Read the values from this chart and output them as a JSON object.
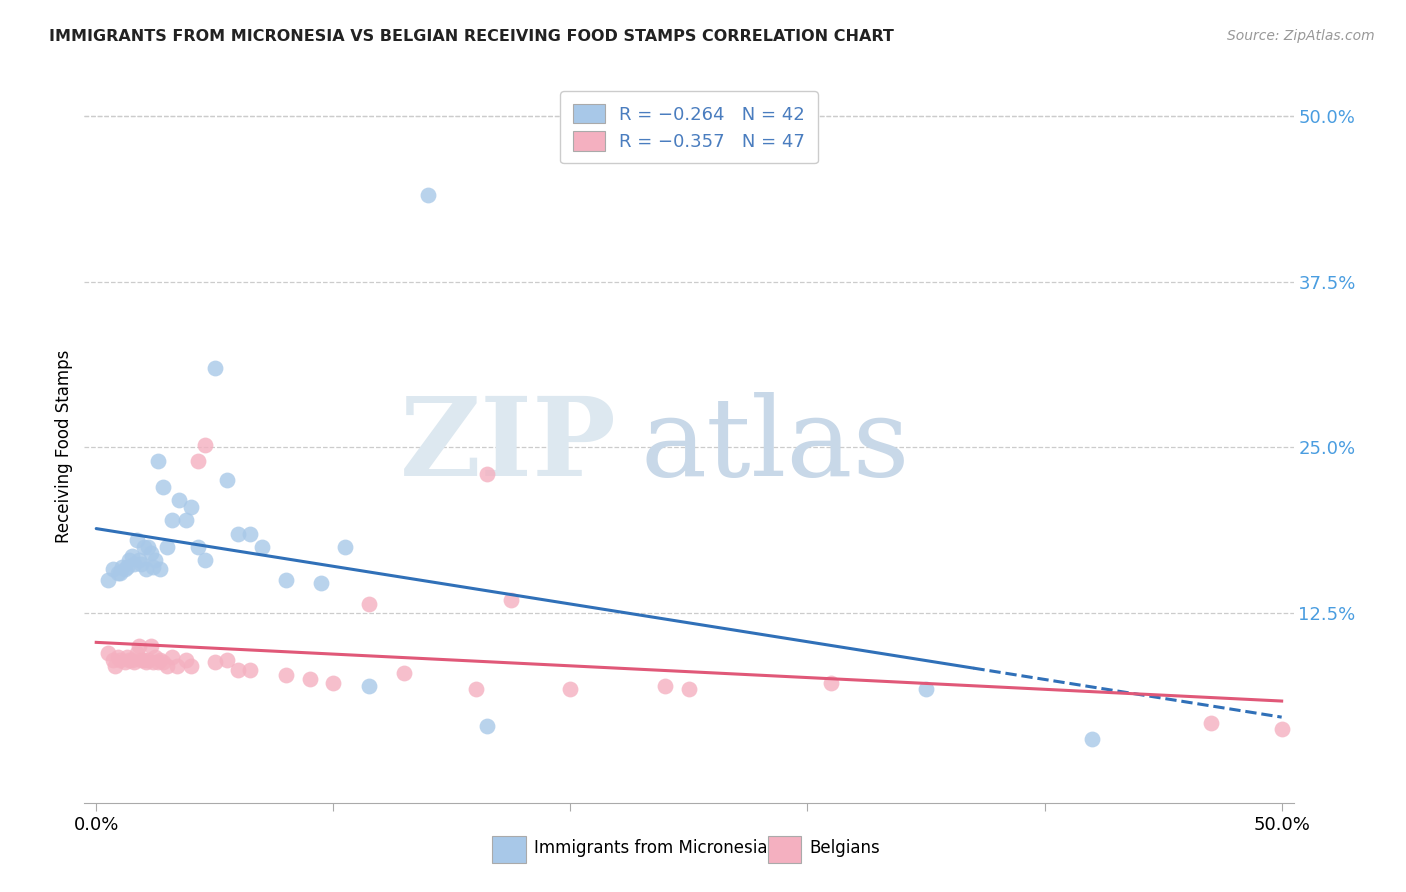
{
  "title": "IMMIGRANTS FROM MICRONESIA VS BELGIAN RECEIVING FOOD STAMPS CORRELATION CHART",
  "source": "Source: ZipAtlas.com",
  "ylabel": "Receiving Food Stamps",
  "blue_color": "#a8c8e8",
  "pink_color": "#f4b0c0",
  "blue_line_color": "#3070b8",
  "pink_line_color": "#e05878",
  "legend_label1": "R = −0.264   N = 42",
  "legend_label2": "R = −0.357   N = 47",
  "legend_label_bottom1": "Immigrants from Micronesia",
  "legend_label_bottom2": "Belgians",
  "blue_x": [
    0.005,
    0.007,
    0.009,
    0.01,
    0.011,
    0.012,
    0.013,
    0.014,
    0.015,
    0.016,
    0.017,
    0.018,
    0.019,
    0.02,
    0.021,
    0.022,
    0.023,
    0.024,
    0.025,
    0.026,
    0.027,
    0.028,
    0.03,
    0.032,
    0.035,
    0.038,
    0.04,
    0.043,
    0.046,
    0.05,
    0.055,
    0.06,
    0.065,
    0.07,
    0.08,
    0.095,
    0.105,
    0.115,
    0.14,
    0.165,
    0.35,
    0.42
  ],
  "blue_y": [
    0.15,
    0.158,
    0.155,
    0.155,
    0.16,
    0.158,
    0.16,
    0.165,
    0.168,
    0.162,
    0.18,
    0.165,
    0.162,
    0.175,
    0.158,
    0.175,
    0.17,
    0.16,
    0.165,
    0.24,
    0.158,
    0.22,
    0.175,
    0.195,
    0.21,
    0.195,
    0.205,
    0.175,
    0.165,
    0.31,
    0.225,
    0.185,
    0.185,
    0.175,
    0.15,
    0.148,
    0.175,
    0.07,
    0.44,
    0.04,
    0.068,
    0.03
  ],
  "pink_x": [
    0.005,
    0.007,
    0.008,
    0.009,
    0.01,
    0.012,
    0.013,
    0.014,
    0.015,
    0.016,
    0.017,
    0.018,
    0.019,
    0.02,
    0.021,
    0.022,
    0.023,
    0.024,
    0.025,
    0.026,
    0.027,
    0.028,
    0.03,
    0.032,
    0.034,
    0.038,
    0.04,
    0.043,
    0.046,
    0.05,
    0.055,
    0.06,
    0.065,
    0.08,
    0.09,
    0.1,
    0.115,
    0.13,
    0.16,
    0.2,
    0.25,
    0.31,
    0.165,
    0.175,
    0.24,
    0.47,
    0.5
  ],
  "pink_y": [
    0.095,
    0.09,
    0.085,
    0.092,
    0.09,
    0.088,
    0.092,
    0.09,
    0.09,
    0.088,
    0.095,
    0.1,
    0.09,
    0.09,
    0.088,
    0.09,
    0.1,
    0.088,
    0.092,
    0.088,
    0.09,
    0.088,
    0.085,
    0.092,
    0.085,
    0.09,
    0.085,
    0.24,
    0.252,
    0.088,
    0.09,
    0.082,
    0.082,
    0.078,
    0.075,
    0.072,
    0.132,
    0.08,
    0.068,
    0.068,
    0.068,
    0.072,
    0.23,
    0.135,
    0.07,
    0.042,
    0.038
  ],
  "xlim": [
    0.0,
    0.5
  ],
  "ylim": [
    0.0,
    0.5
  ],
  "ytick_vals": [
    0.0,
    0.125,
    0.25,
    0.375,
    0.5
  ],
  "ytick_labels": [
    "",
    "12.5%",
    "25.0%",
    "37.5%",
    "50.0%"
  ],
  "xtick_labels_left": "0.0%",
  "xtick_labels_right": "50.0%"
}
